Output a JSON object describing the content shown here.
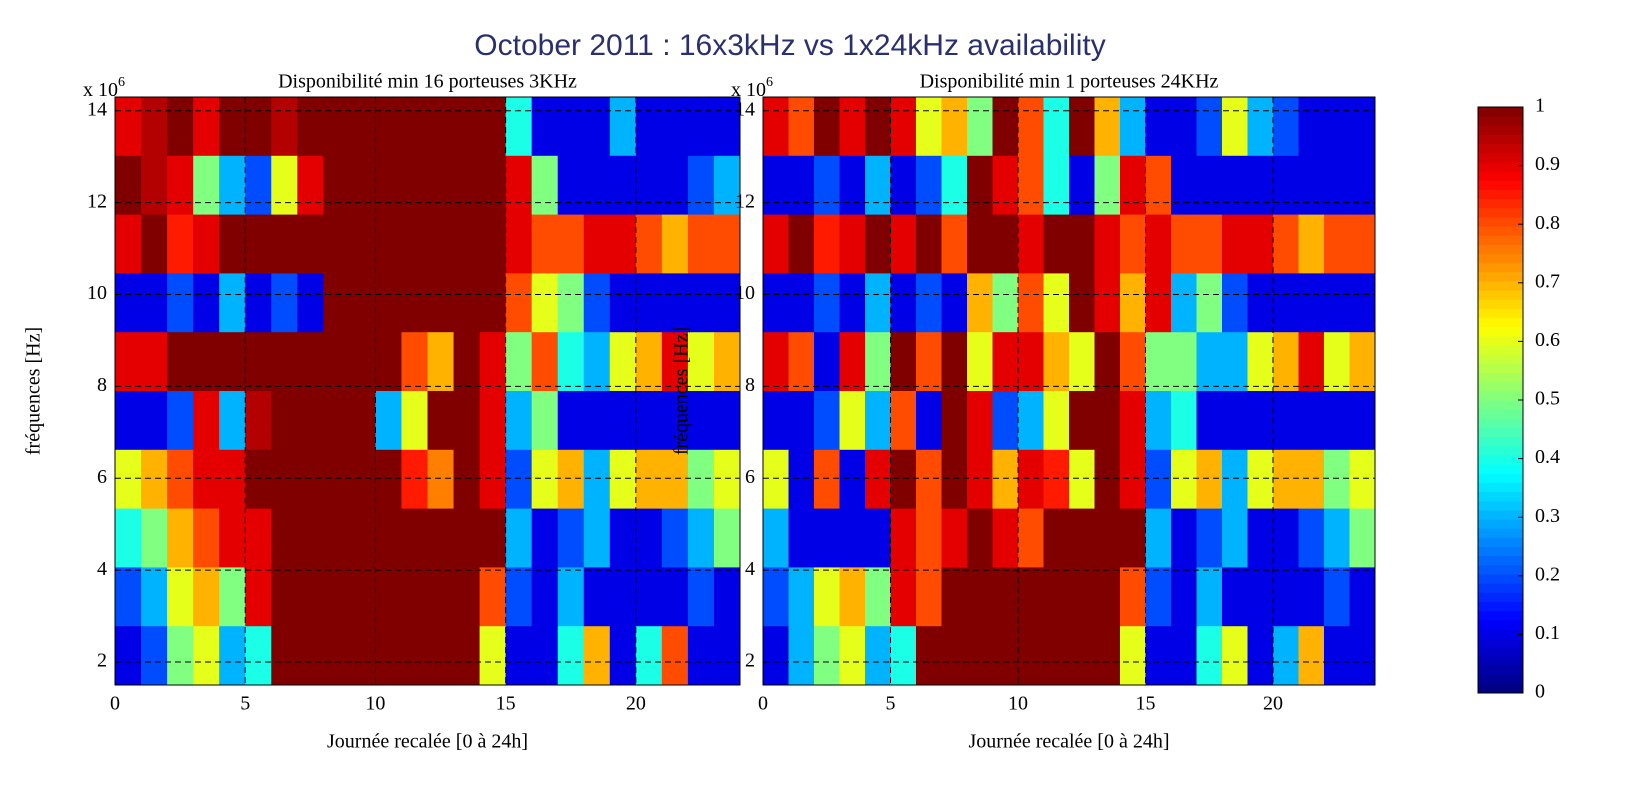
{
  "title": "October 2011 : 16x3kHz vs 1x24kHz availability",
  "chart_data": [
    {
      "type": "heatmap",
      "title": "Disponibilité min 16 porteuses 3KHz",
      "xlabel": "Journée recalée [0 à 24h]",
      "ylabel": "fréquences [Hz]",
      "y_multiplier": {
        "base": "x 10",
        "power": "6"
      },
      "xlim": [
        0,
        24
      ],
      "xticks": [
        0,
        5,
        10,
        15,
        20
      ],
      "ylim": [
        1.5,
        14.3
      ],
      "yticks": [
        2,
        4,
        6,
        8,
        10,
        12,
        14
      ],
      "grid": true,
      "colormap": "jet",
      "clim": [
        0,
        1
      ],
      "values": [
        [
          0.9,
          0.95,
          1,
          0.9,
          1,
          1,
          0.95,
          1,
          1,
          1,
          1,
          1,
          1,
          1,
          1,
          0.4,
          0.1,
          0.1,
          0.1,
          0.3,
          0.1,
          0.1,
          0.1,
          0.1
        ],
        [
          1,
          0.95,
          0.9,
          0.5,
          0.3,
          0.2,
          0.6,
          0.9,
          1,
          1,
          1,
          1,
          1,
          1,
          1,
          0.9,
          0.5,
          0.1,
          0.1,
          0.1,
          0.1,
          0.1,
          0.2,
          0.3
        ],
        [
          0.9,
          1,
          0.85,
          0.9,
          1,
          1,
          1,
          1,
          1,
          1,
          1,
          1,
          1,
          1,
          1,
          0.9,
          0.8,
          0.8,
          0.9,
          0.9,
          0.8,
          0.7,
          0.8,
          0.8
        ],
        [
          0.1,
          0.1,
          0.2,
          0.1,
          0.3,
          0.1,
          0.2,
          0.1,
          1,
          1,
          1,
          1,
          1,
          1,
          1,
          0.8,
          0.6,
          0.5,
          0.2,
          0.1,
          0.1,
          0.1,
          0.1,
          0.1
        ],
        [
          0.9,
          0.9,
          1,
          1,
          1,
          1,
          1,
          1,
          1,
          1,
          1,
          0.8,
          0.7,
          1,
          0.9,
          0.5,
          0.8,
          0.4,
          0.3,
          0.6,
          0.7,
          0.9,
          0.6,
          0.7
        ],
        [
          0.1,
          0.1,
          0.2,
          0.9,
          0.3,
          0.95,
          1,
          1,
          1,
          1,
          0.3,
          0.6,
          1,
          1,
          0.9,
          0.3,
          0.5,
          0.1,
          0.1,
          0.1,
          0.1,
          0.1,
          0.1,
          0.1
        ],
        [
          0.6,
          0.7,
          0.8,
          0.9,
          0.9,
          1,
          1,
          1,
          1,
          1,
          1,
          0.85,
          0.75,
          1,
          0.9,
          0.2,
          0.6,
          0.7,
          0.3,
          0.6,
          0.7,
          0.7,
          0.5,
          0.6
        ],
        [
          0.4,
          0.5,
          0.7,
          0.8,
          0.9,
          0.9,
          1,
          1,
          1,
          1,
          1,
          1,
          1,
          1,
          1,
          0.3,
          0.1,
          0.2,
          0.3,
          0.1,
          0.1,
          0.2,
          0.3,
          0.5
        ],
        [
          0.2,
          0.3,
          0.6,
          0.7,
          0.5,
          0.9,
          1,
          1,
          1,
          1,
          1,
          1,
          1,
          1,
          0.8,
          0.2,
          0.1,
          0.3,
          0.1,
          0.1,
          0.1,
          0.1,
          0.2,
          0.1
        ],
        [
          0.1,
          0.2,
          0.5,
          0.6,
          0.3,
          0.4,
          1,
          1,
          1,
          1,
          1,
          1,
          1,
          1,
          0.6,
          0.1,
          0.1,
          0.4,
          0.7,
          0.1,
          0.4,
          0.8,
          0.1,
          0.1
        ]
      ]
    },
    {
      "type": "heatmap",
      "title": "Disponibilité min 1 porteuses 24KHz",
      "xlabel": "Journée recalée [0 à 24h]",
      "ylabel": "fréquences [Hz]",
      "y_multiplier": {
        "base": "x 10",
        "power": "6"
      },
      "xlim": [
        0,
        24
      ],
      "xticks": [
        0,
        5,
        10,
        15,
        20
      ],
      "ylim": [
        1.5,
        14.3
      ],
      "yticks": [
        2,
        4,
        6,
        8,
        10,
        12,
        14
      ],
      "grid": true,
      "colormap": "jet",
      "clim": [
        0,
        1
      ],
      "cticks": [
        0,
        0.1,
        0.2,
        0.3,
        0.4,
        0.5,
        0.6,
        0.7,
        0.8,
        0.9,
        1
      ],
      "values": [
        [
          0.9,
          0.8,
          1,
          0.9,
          1,
          0.9,
          0.6,
          0.7,
          0.5,
          1,
          0.8,
          0.4,
          1,
          0.7,
          0.3,
          0.1,
          0.1,
          0.2,
          0.6,
          0.3,
          0.2,
          0.1,
          0.1,
          0.1
        ],
        [
          0.1,
          0.1,
          0.2,
          0.1,
          0.3,
          0.1,
          0.2,
          0.4,
          1,
          0.9,
          0.8,
          0.4,
          0.1,
          0.5,
          0.9,
          0.8,
          0.1,
          0.1,
          0.1,
          0.1,
          0.1,
          0.1,
          0.1,
          0.1
        ],
        [
          0.9,
          1,
          0.85,
          0.9,
          1,
          0.9,
          1,
          0.8,
          1,
          1,
          0.9,
          1,
          1,
          0.9,
          0.8,
          0.9,
          0.8,
          0.8,
          0.9,
          0.9,
          0.8,
          0.7,
          0.8,
          0.8
        ],
        [
          0.1,
          0.1,
          0.2,
          0.1,
          0.3,
          0.1,
          0.2,
          0.1,
          0.7,
          0.5,
          0.8,
          0.6,
          1,
          0.9,
          0.7,
          0.9,
          0.3,
          0.5,
          0.2,
          0.1,
          0.1,
          0.1,
          0.1,
          0.1
        ],
        [
          0.9,
          0.8,
          0.1,
          0.9,
          0.5,
          1,
          0.8,
          1,
          0.6,
          0.9,
          0.9,
          0.7,
          0.6,
          1,
          0.8,
          0.5,
          0.5,
          0.3,
          0.3,
          0.6,
          0.7,
          0.9,
          0.6,
          0.7
        ],
        [
          0.1,
          0.1,
          0.2,
          0.6,
          0.3,
          0.8,
          0.1,
          1,
          0.9,
          0.2,
          0.3,
          0.6,
          1,
          1,
          0.9,
          0.3,
          0.4,
          0.1,
          0.1,
          0.1,
          0.1,
          0.1,
          0.1,
          0.1
        ],
        [
          0.6,
          0.1,
          0.8,
          0.1,
          0.9,
          1,
          0.8,
          1,
          0.9,
          0.7,
          0.9,
          0.85,
          0.6,
          1,
          0.9,
          0.2,
          0.6,
          0.7,
          0.3,
          0.6,
          0.7,
          0.7,
          0.5,
          0.6
        ],
        [
          0.3,
          0.1,
          0.1,
          0.1,
          0.1,
          0.9,
          0.8,
          0.9,
          1,
          0.9,
          0.8,
          1,
          1,
          1,
          1,
          0.3,
          0.1,
          0.2,
          0.3,
          0.1,
          0.1,
          0.2,
          0.3,
          0.5
        ],
        [
          0.2,
          0.3,
          0.6,
          0.7,
          0.5,
          0.9,
          0.8,
          1,
          1,
          1,
          1,
          1,
          1,
          1,
          0.8,
          0.2,
          0.1,
          0.3,
          0.1,
          0.1,
          0.1,
          0.1,
          0.2,
          0.1
        ],
        [
          0.1,
          0.3,
          0.5,
          0.6,
          0.3,
          0.4,
          1,
          1,
          1,
          1,
          1,
          1,
          1,
          1,
          0.6,
          0.1,
          0.1,
          0.4,
          0.6,
          0.1,
          0.3,
          0.7,
          0.1,
          0.1
        ]
      ]
    }
  ]
}
